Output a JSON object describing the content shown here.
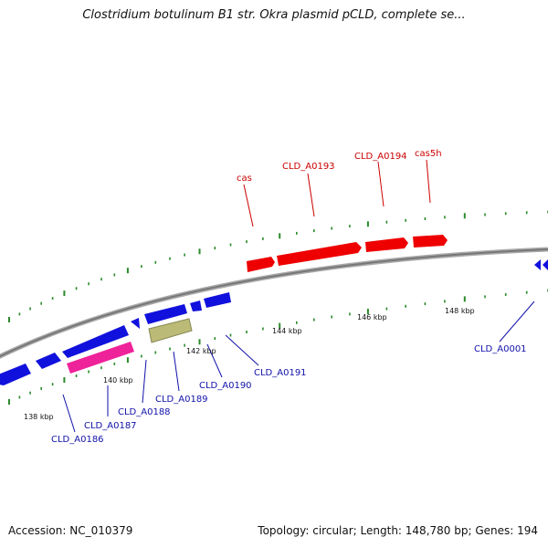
{
  "title": "Clostridium botulinum B1 str. Okra plasmid pCLD, complete se...",
  "footer": {
    "accession": "Accession: NC_010379",
    "summary": "Topology: circular; Length: 148,780 bp; Genes: 194"
  },
  "scale_labels": [
    "138 kbp",
    "140 kbp",
    "142 kbp",
    "144 kbp",
    "146 kbp",
    "148 kbp"
  ],
  "labels_top": [
    "cas",
    "CLD_A0193",
    "CLD_A0194",
    "cas5h"
  ],
  "labels_bottom": [
    "CLD_A0186",
    "CLD_A0187",
    "CLD_A0188",
    "CLD_A0189",
    "CLD_A0190",
    "CLD_A0191",
    "CLD_A0001"
  ],
  "colors": {
    "forward_genes": "#ee0000",
    "reverse_genes": "#1111dd",
    "pink_gene": "#ee2299",
    "olive_gene": "#bbbb77",
    "backbone": "#888888",
    "ticks": "#2a8a2a",
    "top_label_color": "#cc0000",
    "bottom_label_color": "#1111aa"
  }
}
